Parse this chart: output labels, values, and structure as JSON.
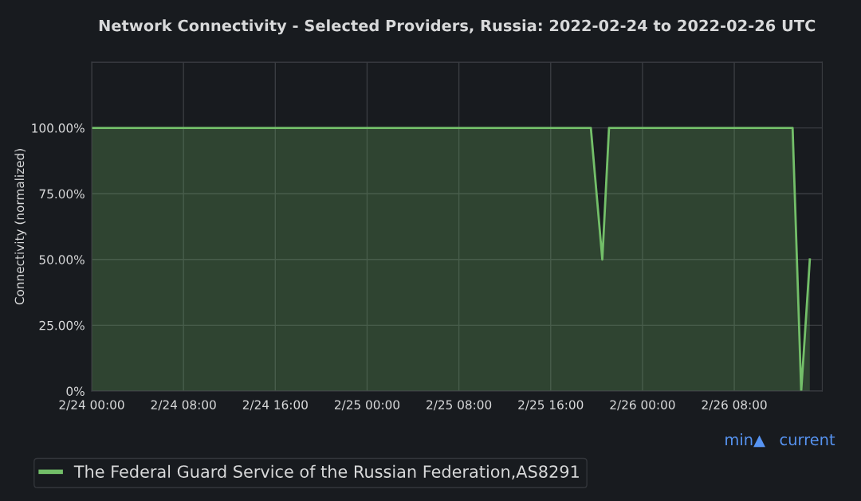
{
  "chart_data": {
    "type": "area",
    "title": "Network Connectivity - Selected Providers, Russia: 2022-02-24 to 2022-02-26 UTC",
    "ylabel": "Connectivity (normalized)",
    "x": [
      "2022-02-24T00:00",
      "2022-02-25T19:30",
      "2022-02-25T20:30",
      "2022-02-25T21:05",
      "2022-02-26T13:05",
      "2022-02-26T13:50",
      "2022-02-26T14:35"
    ],
    "series": [
      {
        "name": "The Federal Guard Service of the Russian Federation,AS8291",
        "color": "#73bf69",
        "values": [
          100,
          100,
          50,
          100,
          100,
          0,
          50
        ]
      }
    ],
    "xlim": [
      "2022-02-24T00:00",
      "2022-02-26T15:40"
    ],
    "xticks": [
      {
        "value": "2022-02-24T00:00",
        "label": "2/24 00:00"
      },
      {
        "value": "2022-02-24T08:00",
        "label": "2/24 08:00"
      },
      {
        "value": "2022-02-24T16:00",
        "label": "2/24 16:00"
      },
      {
        "value": "2022-02-25T00:00",
        "label": "2/25 00:00"
      },
      {
        "value": "2022-02-25T08:00",
        "label": "2/25 08:00"
      },
      {
        "value": "2022-02-25T16:00",
        "label": "2/25 16:00"
      },
      {
        "value": "2022-02-26T00:00",
        "label": "2/26 00:00"
      },
      {
        "value": "2022-02-26T08:00",
        "label": "2/26 08:00"
      }
    ],
    "ylim": [
      0,
      125
    ],
    "yticks": [
      {
        "value": 0,
        "label": "0%"
      },
      {
        "value": 25,
        "label": "25.00%"
      },
      {
        "value": 50,
        "label": "50.00%"
      },
      {
        "value": 75,
        "label": "75.00%"
      },
      {
        "value": 100,
        "label": "100.00%"
      },
      {
        "value": 125,
        "label": null
      }
    ],
    "grid": true,
    "legend": "bottom",
    "annotations": [
      "min▲",
      "current"
    ]
  }
}
